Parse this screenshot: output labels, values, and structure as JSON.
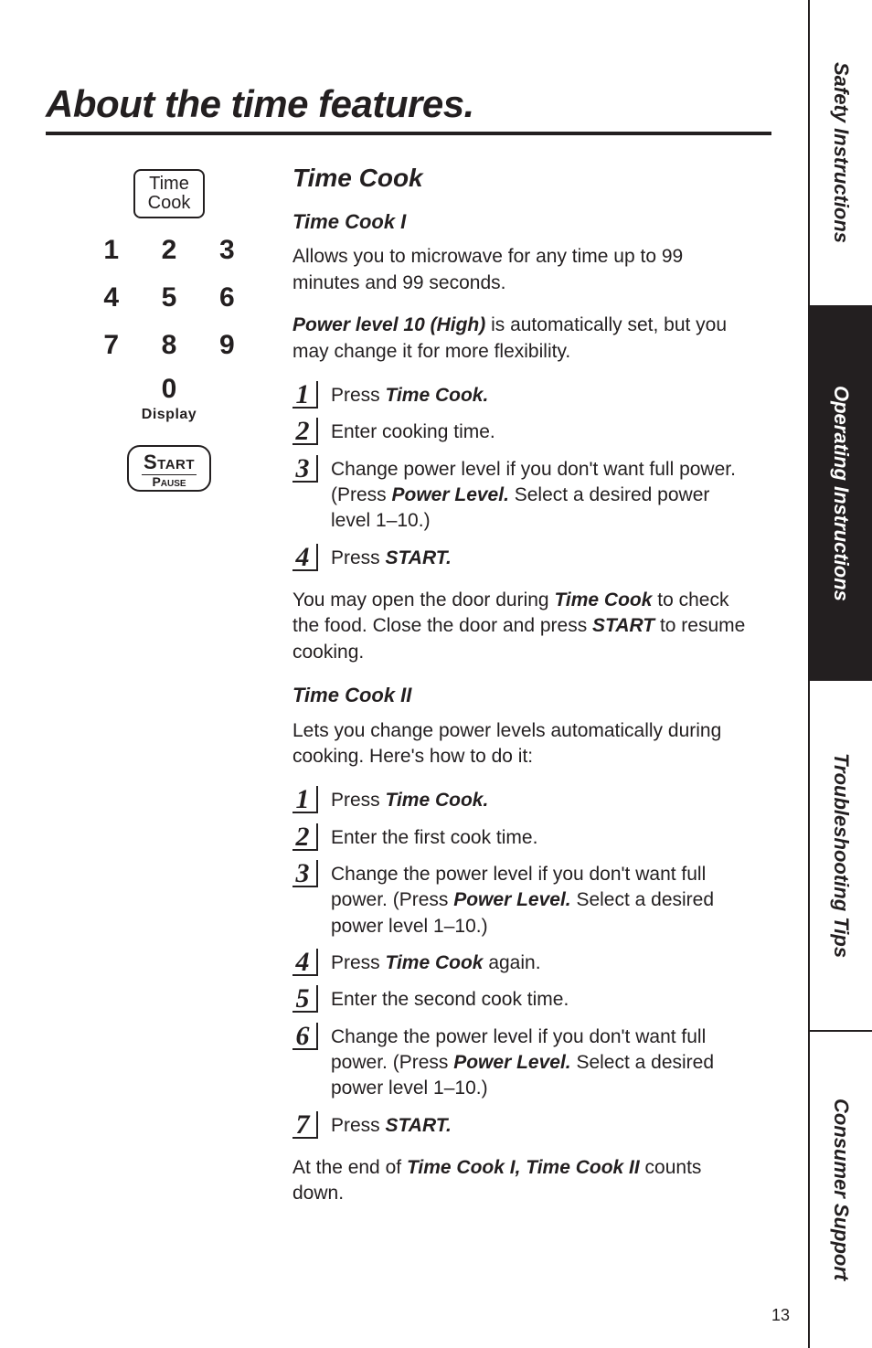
{
  "colors": {
    "fg": "#231f20",
    "bg": "#ffffff"
  },
  "tabs": {
    "t1": "Safety Instructions",
    "t2": "Operating Instructions",
    "t3": "Troubleshooting Tips",
    "t4": "Consumer Support"
  },
  "pageNumber": "13",
  "title": "About the time features.",
  "keypad": {
    "timeCookTop": "Time",
    "timeCookBot": "Cook",
    "n1": "1",
    "n2": "2",
    "n3": "3",
    "n4": "4",
    "n5": "5",
    "n6": "6",
    "n7": "7",
    "n8": "8",
    "n9": "9",
    "n0": "0",
    "displayLabel": "Display",
    "startTop": "Start",
    "startBot": "Pause"
  },
  "section": {
    "heading": "Time Cook",
    "tc1": {
      "heading": "Time Cook I",
      "p1a": "Allows you to microwave for any time up to 99 minutes and 99 seconds.",
      "p2_bold": "Power level 10 (High)",
      "p2_rest": " is automatically set, but you may change it for more flexibility.",
      "s1n": "1",
      "s1a": "Press ",
      "s1b": "Time Cook.",
      "s2n": "2",
      "s2": "Enter cooking time.",
      "s3n": "3",
      "s3a": "Change power level if you don't want full power. (Press ",
      "s3b": "Power Level.",
      "s3c": " Select a desired power level 1–10.)",
      "s4n": "4",
      "s4a": "Press ",
      "s4b": "START.",
      "afterA": "You may open the door during ",
      "afterB": "Time Cook",
      "afterC": " to check the food. Close the door and press ",
      "afterD": "START",
      "afterE": " to resume cooking."
    },
    "tc2": {
      "heading": "Time Cook II",
      "p1": "Lets you change power levels automatically during cooking. Here's how to do it:",
      "s1n": "1",
      "s1a": "Press ",
      "s1b": "Time Cook.",
      "s2n": "2",
      "s2": "Enter the first cook time.",
      "s3n": "3",
      "s3a": "Change the power level if you don't want full power. (Press ",
      "s3b": "Power Level.",
      "s3c": " Select a desired power level 1–10.)",
      "s4n": "4",
      "s4a": "Press ",
      "s4b": "Time Cook",
      "s4c": " again.",
      "s5n": "5",
      "s5": "Enter the second cook time.",
      "s6n": "6",
      "s6a": "Change the power level if you don't want full power. (Press ",
      "s6b": "Power Level.",
      "s6c": " Select a desired power level 1–10.)",
      "s7n": "7",
      "s7a": "Press ",
      "s7b": "START.",
      "afterA": "At the end of ",
      "afterB": "Time Cook I, Time Cook II",
      "afterC": " counts down."
    }
  }
}
